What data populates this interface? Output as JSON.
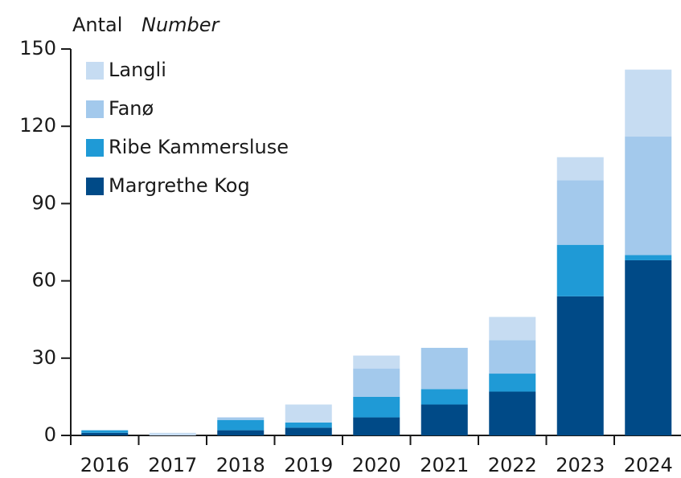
{
  "chart_data": {
    "type": "stacked_bar",
    "ylabel": "Antal",
    "ylabel_en": "Number",
    "categories": [
      "2016",
      "2017",
      "2018",
      "2019",
      "2020",
      "2021",
      "2022",
      "2023",
      "2024"
    ],
    "series": [
      {
        "name": "Margrethe Kog",
        "color": "#004a87",
        "values": [
          1,
          0,
          2,
          3,
          7,
          12,
          17,
          54,
          68
        ]
      },
      {
        "name": "Ribe Kammersluse",
        "color": "#1f9ad6",
        "values": [
          1,
          0,
          4,
          2,
          8,
          6,
          7,
          20,
          2
        ]
      },
      {
        "name": "Fanø",
        "color": "#a3c9ec",
        "values": [
          0,
          0,
          1,
          0,
          11,
          16,
          13,
          25,
          46
        ]
      },
      {
        "name": "Langli",
        "color": "#c6dcf2",
        "values": [
          0,
          1,
          0,
          7,
          5,
          0,
          9,
          9,
          26
        ]
      }
    ],
    "ylim": [
      0,
      150
    ],
    "yticks": [
      0,
      30,
      60,
      90,
      120,
      150
    ],
    "legend": "upper left"
  }
}
